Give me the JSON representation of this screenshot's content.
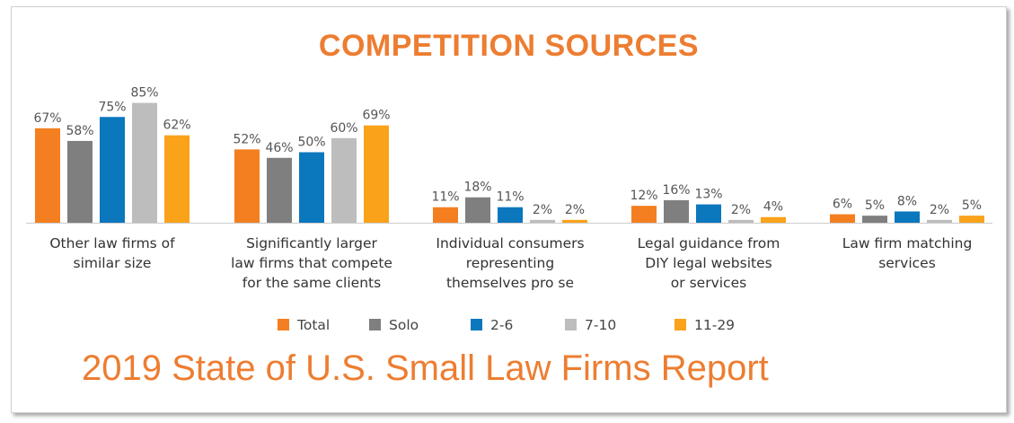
{
  "chart_data": {
    "type": "bar",
    "title": "COMPETITION SOURCES",
    "xlabel": "",
    "ylabel": "",
    "ylim": [
      0,
      100
    ],
    "grid": false,
    "legend_position": "bottom",
    "categories": [
      [
        "Other law firms of",
        "similar size"
      ],
      [
        "Significantly larger",
        "law firms that compete",
        "for the same clients"
      ],
      [
        "Individual consumers",
        "representing",
        "themselves pro se"
      ],
      [
        "Legal guidance from",
        "DIY legal websites",
        "or services"
      ],
      [
        "Law firm matching",
        "services"
      ]
    ],
    "series": [
      {
        "name": "Total",
        "color": "#f47f20",
        "values": [
          67,
          52,
          11,
          12,
          6
        ]
      },
      {
        "name": "Solo",
        "color": "#7f7f7f",
        "values": [
          58,
          46,
          18,
          16,
          5
        ]
      },
      {
        "name": "2-6",
        "color": "#0b77bd",
        "values": [
          75,
          50,
          11,
          13,
          8
        ]
      },
      {
        "name": "7-10",
        "color": "#bdbdbd",
        "values": [
          85,
          60,
          2,
          2,
          2
        ]
      },
      {
        "name": "11-29",
        "color": "#f9a21a",
        "values": [
          62,
          69,
          2,
          4,
          5
        ]
      }
    ],
    "value_suffix": "%"
  },
  "footer": {
    "title": "2019 State of U.S. Small Law Firms Report"
  },
  "colors": {
    "title": "#ed7d31",
    "axis": "#cccccc"
  }
}
